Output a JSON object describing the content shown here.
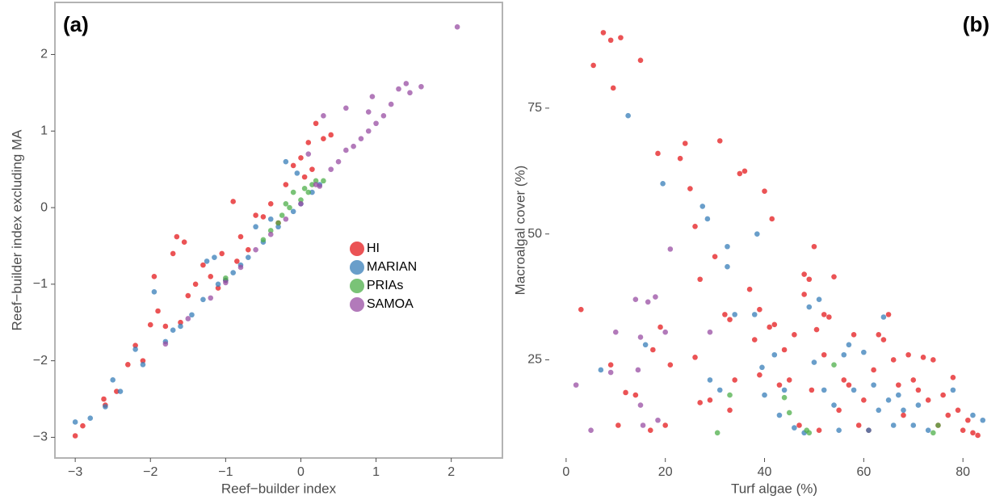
{
  "chart_data": [
    {
      "type": "scatter",
      "annotation": "(a)",
      "xlabel": "Reef−builder index",
      "ylabel": "Reef−builder index excluding MA",
      "xlim": [
        -3.27,
        2.68
      ],
      "ylim": [
        -3.27,
        2.68
      ],
      "xticks": [
        {
          "value": -3,
          "label": "−3"
        },
        {
          "value": -2,
          "label": "−2"
        },
        {
          "value": -1,
          "label": "−1"
        },
        0,
        1,
        2
      ],
      "yticks": [
        {
          "value": -3,
          "label": "−3"
        },
        {
          "value": -2,
          "label": "−2"
        },
        {
          "value": -1,
          "label": "−1"
        },
        0,
        1,
        2
      ],
      "legend": "right",
      "series": [
        {
          "name": "HI",
          "color": "#e41a1c",
          "x": [
            -3,
            -2.9,
            -2.62,
            -2.6,
            -2.45,
            -2.3,
            -2.2,
            -2,
            -1.95,
            -1.9,
            -1.8,
            -1.65,
            -1.55,
            -1.7,
            -1.5,
            -1.4,
            -1.3,
            -1.2,
            -1.05,
            -0.9,
            -0.8,
            -0.6,
            -0.5,
            -0.4,
            -0.2,
            -0.1,
            0,
            0.1,
            0.15,
            0.3,
            0.4,
            -1,
            -0.7,
            -2.1,
            -1.6,
            0.2,
            -0.3,
            -1.1,
            0.05,
            -0.85
          ],
          "values": [
            -2.98,
            -2.85,
            -2.5,
            -2.58,
            -2.4,
            -2.05,
            -1.8,
            -1.53,
            -0.9,
            -1.35,
            -1.55,
            -0.38,
            -0.45,
            -0.6,
            -1.15,
            -1,
            -0.75,
            -0.9,
            -0.6,
            0.08,
            -0.38,
            -0.1,
            -0.12,
            0.05,
            0.3,
            0.55,
            0.65,
            0.85,
            0.5,
            0.9,
            0.95,
            -0.95,
            -0.55,
            -2,
            -1.5,
            1.1,
            -0.2,
            -1.05,
            0.4,
            -0.7
          ]
        },
        {
          "name": "MARIAN",
          "color": "#377eb8",
          "x": [
            -3,
            -2.8,
            -2.5,
            -2.4,
            -2.2,
            -1.95,
            -1.8,
            -1.6,
            -1.45,
            -1.3,
            -1.15,
            -1,
            -0.9,
            -0.7,
            -0.6,
            -0.5,
            -0.3,
            -0.2,
            -0.1,
            0,
            0.15,
            0.25,
            -2.1,
            -1.7,
            -1.1,
            -0.4,
            -0.8,
            -2.6,
            -1.25,
            -0.05
          ],
          "values": [
            -2.8,
            -2.75,
            -2.25,
            -2.4,
            -1.85,
            -1.1,
            -1.75,
            -1.55,
            -1.4,
            -1.2,
            -0.65,
            -0.95,
            -0.85,
            -0.65,
            -0.25,
            -0.45,
            -0.25,
            0.6,
            -0.05,
            0.05,
            0.2,
            0.3,
            -2.05,
            -1.6,
            -1,
            -0.15,
            -0.75,
            -2.6,
            -0.7,
            0.45
          ]
        },
        {
          "name": "PRIAs",
          "color": "#4daf4a",
          "x": [
            -1,
            -0.5,
            -0.4,
            -0.3,
            -0.25,
            -0.2,
            -0.1,
            0,
            0.05,
            0.1,
            0.15,
            0.2,
            -0.15,
            0.3
          ],
          "values": [
            -0.92,
            -0.42,
            -0.3,
            -0.2,
            -0.1,
            0.05,
            0.2,
            0.1,
            0.25,
            0.2,
            0.3,
            0.35,
            0,
            0.35
          ]
        },
        {
          "name": "SAMOA",
          "color": "#984ea3",
          "x": [
            -1.8,
            -1.5,
            -1.2,
            -1,
            -0.8,
            -0.6,
            -0.4,
            -0.2,
            0,
            0.2,
            0.3,
            0.4,
            0.5,
            0.6,
            0.6,
            0.7,
            0.8,
            0.9,
            0.9,
            1,
            1.1,
            1.2,
            1.3,
            1.4,
            1.45,
            1.6,
            2.08,
            0.95,
            0.25,
            0.1
          ],
          "values": [
            -1.78,
            -1.45,
            -1.18,
            -0.98,
            -0.78,
            -0.55,
            -0.35,
            -0.15,
            0.05,
            0.3,
            1.2,
            0.5,
            0.6,
            0.75,
            1.3,
            0.8,
            0.9,
            1,
            1.25,
            1.1,
            1.2,
            1.35,
            1.55,
            1.62,
            1.5,
            1.58,
            2.36,
            1.45,
            0.28,
            0.7
          ]
        }
      ]
    },
    {
      "type": "scatter",
      "annotation": "(b)",
      "xlabel": "Turf algae (%)",
      "ylabel": "Macroalgal cover (%)",
      "xlim": [
        -3.4,
        87.3
      ],
      "ylim": [
        5.5,
        96
      ],
      "xticks": [
        0,
        20,
        40,
        60,
        80
      ],
      "yticks": [
        25,
        50,
        75
      ],
      "series": [
        {
          "color": "#e41a1c",
          "x": [
            7.5,
            9,
            11,
            5.5,
            15,
            9.5,
            3,
            9,
            10.5,
            12,
            14,
            17,
            17.5,
            18.5,
            19,
            20,
            21,
            23,
            24,
            25,
            26,
            26,
            27,
            27,
            29,
            30,
            31,
            32,
            33,
            33,
            34,
            35,
            36,
            37,
            38,
            39,
            39,
            40,
            41,
            41.5,
            42,
            43,
            44,
            45,
            46,
            47,
            48,
            48,
            49,
            49.5,
            50,
            50.5,
            51,
            52,
            52,
            53,
            54,
            55,
            56,
            57,
            58,
            59,
            60,
            61,
            62,
            63,
            64,
            65,
            66,
            67,
            68,
            69,
            70,
            71,
            72,
            73,
            74,
            75,
            76,
            77,
            78,
            79,
            80,
            81,
            82,
            83
          ],
          "values": [
            90,
            88.5,
            89,
            83.5,
            84.5,
            79,
            35,
            24,
            12,
            18.5,
            18,
            11,
            27,
            66,
            31.5,
            12,
            24,
            65,
            68,
            59,
            51.5,
            25.5,
            41,
            16.5,
            17,
            45.5,
            68.5,
            34,
            33,
            15,
            21,
            62,
            62.5,
            39,
            29,
            35,
            22,
            58.5,
            31.5,
            53,
            32,
            20,
            27,
            21,
            30,
            12,
            42,
            38,
            41,
            19,
            47.5,
            31,
            11,
            34,
            26,
            33.5,
            41.5,
            15,
            21,
            20,
            30,
            12,
            17,
            11,
            23,
            30,
            29,
            34,
            25,
            20,
            14,
            26,
            21,
            19,
            25.5,
            17,
            25,
            12,
            18,
            14,
            21.5,
            15,
            11,
            13,
            10.5,
            10
          ]
        },
        {
          "color": "#377eb8",
          "x": [
            12.5,
            7,
            16,
            19.5,
            27.5,
            28.5,
            29,
            31,
            32.5,
            32.5,
            34,
            38,
            38.5,
            39.5,
            40,
            42,
            43,
            44,
            46,
            48,
            49,
            50,
            51,
            52,
            54,
            55,
            56,
            57,
            58,
            60,
            61,
            62,
            63,
            64,
            65,
            66,
            67,
            68,
            70,
            71,
            73,
            78,
            82,
            84
          ],
          "values": [
            73.5,
            23,
            28,
            60,
            55.5,
            53,
            21,
            19,
            47.5,
            43.5,
            34,
            34,
            50,
            23.5,
            18,
            26,
            14,
            19,
            11.5,
            10.5,
            35.5,
            24.5,
            37,
            19,
            16,
            11,
            26,
            28,
            19,
            26.5,
            11,
            20,
            15,
            33.5,
            17,
            12,
            18,
            15,
            12,
            16,
            11,
            19,
            14,
            13
          ]
        },
        {
          "color": "#4daf4a",
          "x": [
            30.5,
            33,
            44,
            45,
            48.5,
            49,
            54,
            74,
            75
          ],
          "values": [
            10.5,
            18,
            17.5,
            14.5,
            11,
            10.5,
            24,
            10.5,
            12
          ]
        },
        {
          "color": "#984ea3",
          "x": [
            2,
            5,
            9,
            10,
            14,
            15,
            15,
            15.5,
            16.5,
            18,
            18.5,
            20,
            21,
            29,
            14.5
          ],
          "values": [
            20,
            11,
            22.5,
            30.5,
            37,
            29.5,
            16,
            12,
            36.5,
            37.5,
            13,
            30.5,
            47,
            30.5,
            23
          ]
        }
      ]
    }
  ]
}
